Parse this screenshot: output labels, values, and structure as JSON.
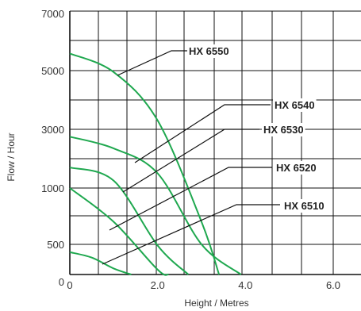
{
  "chart_data": {
    "type": "line",
    "title": "",
    "xlabel": "Height / Metres",
    "ylabel": "Flow / Hour",
    "xlim": [
      0,
      6.5
    ],
    "x_ticks": [
      {
        "value": 0,
        "label": "0"
      },
      {
        "value": 2,
        "label": "2.0"
      },
      {
        "value": 4,
        "label": "4.0"
      },
      {
        "value": 6,
        "label": "6.0"
      }
    ],
    "y_ticks": [
      {
        "level": 7,
        "label": "7000"
      },
      {
        "level": 5,
        "label": "5000"
      },
      {
        "level": 3,
        "label": "3000"
      },
      {
        "level": 1,
        "label": "1000"
      },
      {
        "level": -1,
        "label": "500"
      },
      {
        "level": -2,
        "label": "0"
      }
    ],
    "grid": true,
    "legend": "none",
    "colors": {
      "curve": "#1fa84f",
      "grid": "#111111",
      "leader": "#111111"
    },
    "series": [
      {
        "name": "HX 6550",
        "x": [
          0,
          1.0,
          2.0,
          3.0,
          3.4
        ],
        "y": [
          5600,
          4950,
          3300,
          700,
          0
        ]
      },
      {
        "name": "HX 6540",
        "x": [
          0,
          1.0,
          2.0,
          3.0,
          3.9
        ],
        "y": [
          2750,
          2350,
          1500,
          500,
          0
        ]
      },
      {
        "name": "HX 6530",
        "x": [
          0,
          1.0,
          2.0,
          2.7
        ],
        "y": [
          1700,
          1250,
          480,
          0
        ]
      },
      {
        "name": "HX 6520",
        "x": [
          0,
          1.0,
          2.0,
          2.25
        ],
        "y": [
          1000,
          700,
          80,
          0
        ]
      },
      {
        "name": "HX 6510",
        "x": [
          0,
          0.5,
          1.0,
          1.4
        ],
        "y": [
          370,
          280,
          100,
          0
        ]
      }
    ]
  }
}
